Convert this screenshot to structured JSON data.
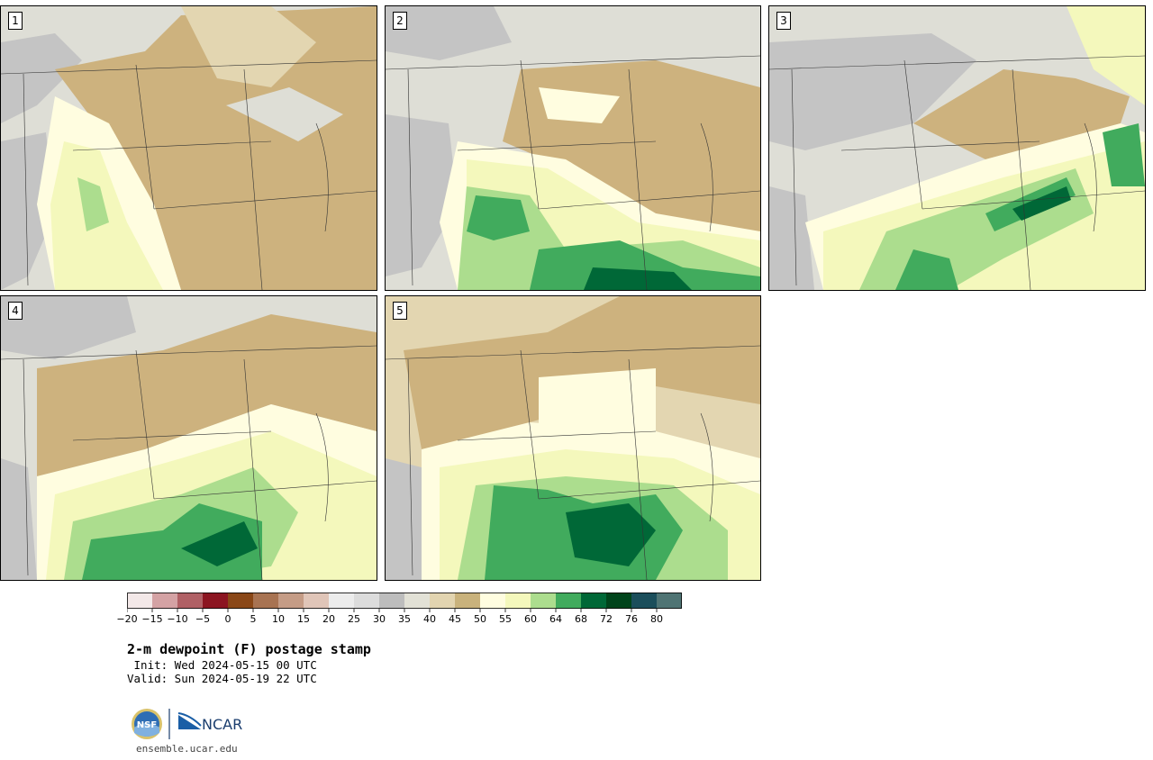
{
  "colors": {
    "scale": [
      "#f3e8e8",
      "#d4a2a4",
      "#b06065",
      "#8c1521",
      "#8a4717",
      "#a87352",
      "#c59c86",
      "#e0c5b8",
      "#ececec",
      "#dcdcdc",
      "#bdbdbd",
      "#e2e1d6",
      "#e2d4b0",
      "#c9b27c",
      "#fffde0",
      "#f4f8bc",
      "#acdd8e",
      "#41ab5d",
      "#006837",
      "#00441b",
      "#1b4e5b",
      "#4f7474"
    ],
    "land_gray": "#c4c4c4",
    "light_gray": "#deded6",
    "tan": "#cdb27e",
    "light_tan": "#e3d6b1",
    "cream": "#fffde0",
    "pale_yellow": "#f4f8bc",
    "light_green": "#acdd8e",
    "green": "#41ab5d",
    "dark_green": "#006837"
  },
  "panels": [
    {
      "label": "1"
    },
    {
      "label": "2"
    },
    {
      "label": "3"
    },
    {
      "label": "4"
    },
    {
      "label": "5"
    }
  ],
  "colorbar": {
    "tick_labels": [
      "−20",
      "−15",
      "−10",
      "−5",
      "0",
      "5",
      "10",
      "15",
      "20",
      "25",
      "30",
      "35",
      "40",
      "45",
      "50",
      "55",
      "60",
      "64",
      "68",
      "72",
      "76",
      "80"
    ]
  },
  "title": "2-m dewpoint (F) postage stamp",
  "init_line": " Init: Wed 2024-05-15 00 UTC",
  "valid_line": "Valid: Sun 2024-05-19 22 UTC",
  "logo": {
    "nsf_text": "NSF",
    "ncar_text": "NCAR"
  },
  "site": "ensemble.ucar.edu"
}
